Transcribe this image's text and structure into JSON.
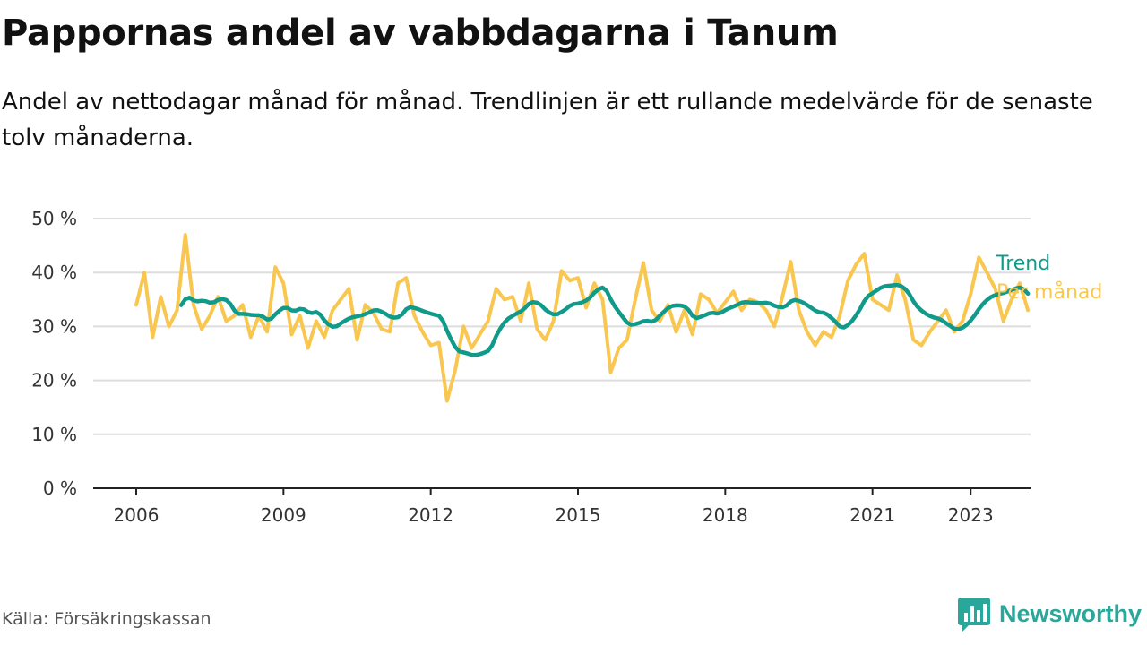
{
  "title": "Pappornas andel av vabbdagarna i Tanum",
  "subtitle": "Andel av nettodagar månad för månad. Trendlinjen är ett rullande medelvärde för de senaste tolv månaderna.",
  "source": "Källa: Försäkringskassan",
  "brand": {
    "name": "Newsworthy",
    "color": "#2aa79b",
    "icon": "bar-chart-speech-bubble-icon"
  },
  "colors": {
    "monthly": "#f9c74f",
    "trend": "#0f9a8a",
    "grid": "#dddddd",
    "axis": "#222222"
  },
  "chart_data": {
    "type": "line",
    "x_axis": {
      "type": "date",
      "range": [
        "2005-10",
        "2024-04"
      ],
      "ticks": [
        "2006",
        "2009",
        "2012",
        "2015",
        "2018",
        "2021",
        "2023"
      ]
    },
    "y_axis": {
      "range": [
        0,
        50
      ],
      "unit": "%",
      "ticks": [
        "0 %",
        "10 %",
        "20 %",
        "30 %",
        "40 %",
        "50 %"
      ]
    },
    "grid": true,
    "legend": "right, at end of lines",
    "series": [
      {
        "name": "Per månad",
        "color": "#f9c74f",
        "anchors": [
          [
            "2006-01",
            34
          ],
          [
            "2006-03",
            40
          ],
          [
            "2006-05",
            28
          ],
          [
            "2006-07",
            35.5
          ],
          [
            "2006-09",
            30
          ],
          [
            "2006-11",
            33
          ],
          [
            "2007-01",
            47
          ],
          [
            "2007-03",
            34
          ],
          [
            "2007-05",
            29.5
          ],
          [
            "2007-07",
            32
          ],
          [
            "2007-09",
            35.5
          ],
          [
            "2007-11",
            31
          ],
          [
            "2008-01",
            32
          ],
          [
            "2008-03",
            34
          ],
          [
            "2008-05",
            28
          ],
          [
            "2008-07",
            32
          ],
          [
            "2008-09",
            29
          ],
          [
            "2008-11",
            41
          ],
          [
            "2009-01",
            38
          ],
          [
            "2009-03",
            28.5
          ],
          [
            "2009-05",
            32
          ],
          [
            "2009-07",
            26
          ],
          [
            "2009-09",
            31
          ],
          [
            "2009-11",
            28
          ],
          [
            "2010-01",
            33
          ],
          [
            "2010-03",
            35
          ],
          [
            "2010-05",
            37
          ],
          [
            "2010-07",
            27.5
          ],
          [
            "2010-09",
            34
          ],
          [
            "2010-11",
            32.5
          ],
          [
            "2011-01",
            29.5
          ],
          [
            "2011-03",
            29
          ],
          [
            "2011-05",
            38
          ],
          [
            "2011-07",
            39
          ],
          [
            "2011-09",
            32
          ],
          [
            "2011-11",
            29
          ],
          [
            "2012-01",
            26.5
          ],
          [
            "2012-03",
            27
          ],
          [
            "2012-05",
            16.2
          ],
          [
            "2012-07",
            22
          ],
          [
            "2012-09",
            30
          ],
          [
            "2012-11",
            26
          ],
          [
            "2013-01",
            28.5
          ],
          [
            "2013-03",
            31
          ],
          [
            "2013-05",
            37
          ],
          [
            "2013-07",
            35
          ],
          [
            "2013-09",
            35.5
          ],
          [
            "2013-11",
            31
          ],
          [
            "2014-01",
            38
          ],
          [
            "2014-03",
            29.5
          ],
          [
            "2014-05",
            27.5
          ],
          [
            "2014-07",
            31
          ],
          [
            "2014-09",
            40.3
          ],
          [
            "2014-11",
            38.5
          ],
          [
            "2015-01",
            39
          ],
          [
            "2015-03",
            33.5
          ],
          [
            "2015-05",
            38
          ],
          [
            "2015-07",
            35
          ],
          [
            "2015-09",
            21.5
          ],
          [
            "2015-11",
            26
          ],
          [
            "2016-01",
            27.5
          ],
          [
            "2016-03",
            35
          ],
          [
            "2016-05",
            41.8
          ],
          [
            "2016-07",
            33
          ],
          [
            "2016-09",
            31
          ],
          [
            "2016-11",
            34
          ],
          [
            "2017-01",
            29
          ],
          [
            "2017-03",
            33
          ],
          [
            "2017-05",
            28.5
          ],
          [
            "2017-07",
            36
          ],
          [
            "2017-09",
            35
          ],
          [
            "2017-11",
            32.5
          ],
          [
            "2018-01",
            34.5
          ],
          [
            "2018-03",
            36.5
          ],
          [
            "2018-05",
            33
          ],
          [
            "2018-07",
            35
          ],
          [
            "2018-09",
            34.5
          ],
          [
            "2018-11",
            33
          ],
          [
            "2019-01",
            30
          ],
          [
            "2019-03",
            35.5
          ],
          [
            "2019-05",
            42
          ],
          [
            "2019-07",
            33
          ],
          [
            "2019-09",
            29
          ],
          [
            "2019-11",
            26.5
          ],
          [
            "2020-01",
            29
          ],
          [
            "2020-03",
            28
          ],
          [
            "2020-05",
            32
          ],
          [
            "2020-07",
            38.5
          ],
          [
            "2020-09",
            41.5
          ],
          [
            "2020-11",
            43.5
          ],
          [
            "2021-01",
            35
          ],
          [
            "2021-03",
            34
          ],
          [
            "2021-05",
            33
          ],
          [
            "2021-07",
            39.5
          ],
          [
            "2021-09",
            35
          ],
          [
            "2021-11",
            27.5
          ],
          [
            "2022-01",
            26.5
          ],
          [
            "2022-03",
            29
          ],
          [
            "2022-05",
            31
          ],
          [
            "2022-07",
            33
          ],
          [
            "2022-09",
            29
          ],
          [
            "2022-11",
            31
          ],
          [
            "2023-01",
            36
          ],
          [
            "2023-03",
            42.8
          ],
          [
            "2023-05",
            40
          ],
          [
            "2023-07",
            37
          ],
          [
            "2023-09",
            31
          ],
          [
            "2023-11",
            35
          ],
          [
            "2024-01",
            38
          ],
          [
            "2024-03",
            33
          ]
        ],
        "note_scale_fix": "anchor dates are positioned linearly between 2006-01 and 2024-01 per axis ticks"
      }
    ]
  }
}
